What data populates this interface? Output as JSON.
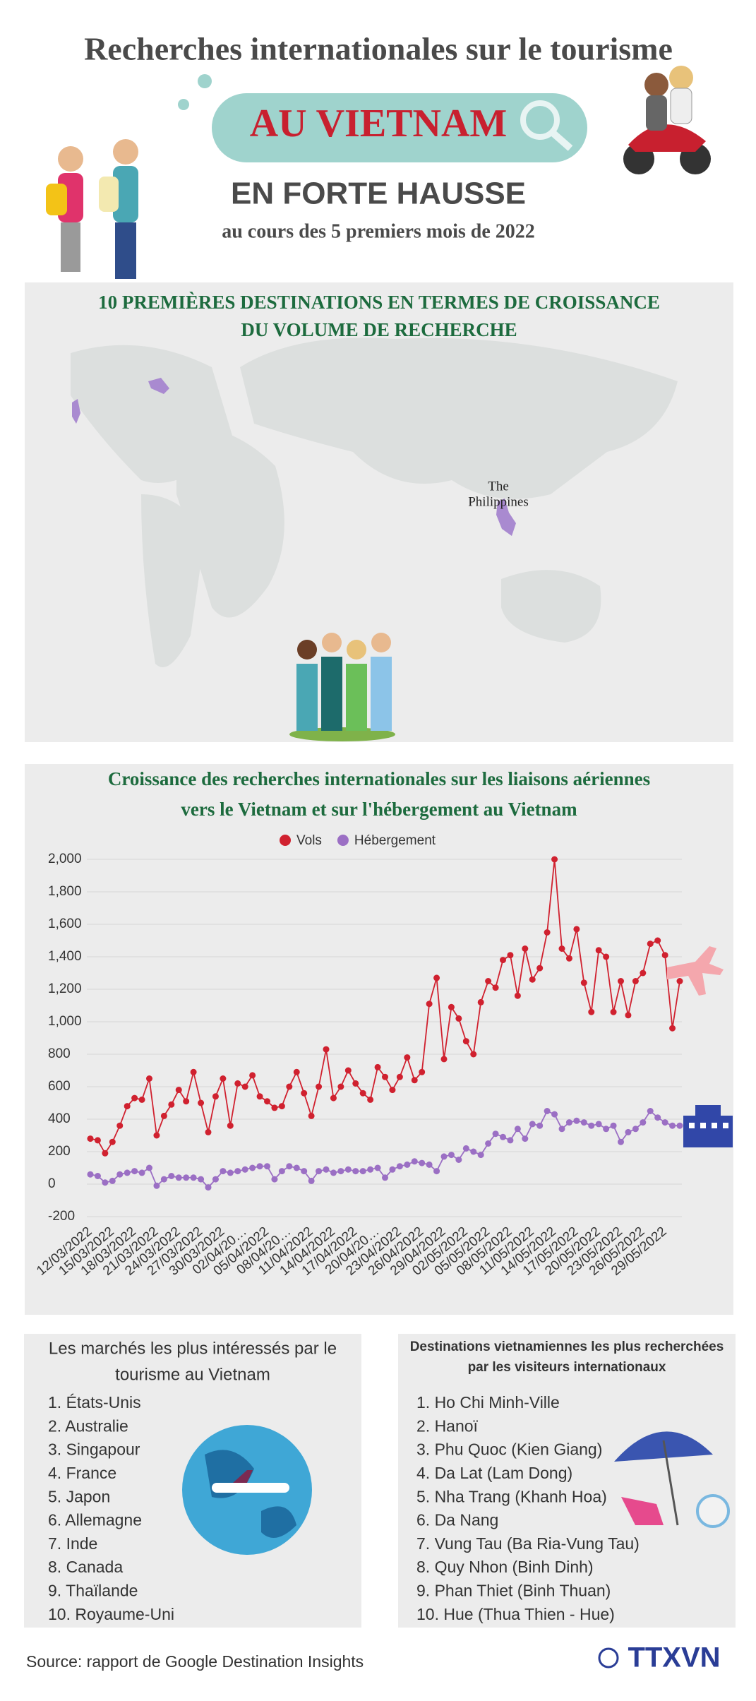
{
  "header": {
    "title": "Recherches internationales sur le tourisme",
    "highlight": "AU VIETNAM",
    "headline": "EN FORTE HAUSSE",
    "subtitle": "au cours des 5 premiers mois de 2022"
  },
  "map": {
    "title_lines": [
      "10 PREMIÈRES DESTINATIONS EN TERMES DE CROISSANCE",
      "DU VOLUME DE RECHERCHE"
    ],
    "label_lines": [
      "The",
      "Philippines"
    ]
  },
  "chart_data": {
    "type": "line",
    "title_lines": [
      "Croissance des recherches internationales sur les liaisons aériennes",
      "vers le Vietnam et sur l'hébergement au Vietnam"
    ],
    "categories": [
      "12/03/2022",
      null,
      null,
      "15/03/2022",
      null,
      null,
      "18/03/2022",
      null,
      null,
      "21/03/2022",
      null,
      null,
      "24/03/2022",
      null,
      null,
      "27/03/2022",
      null,
      null,
      "30/03/2022",
      null,
      null,
      "02/04/20…",
      null,
      null,
      "05/04/2022",
      null,
      null,
      "08/04/20…",
      null,
      null,
      "11/04/2022",
      null,
      null,
      "14/04/2022",
      null,
      null,
      "17/04/2022",
      null,
      null,
      "20/04/20…",
      null,
      null,
      "23/04/2022",
      null,
      null,
      "26/04/2022",
      null,
      null,
      "29/04/2022",
      null,
      null,
      "02/05/2022",
      null,
      null,
      "05/05/2022",
      null,
      null,
      "08/05/2022",
      null,
      null,
      "11/05/2022",
      null,
      null,
      "14/05/2022",
      null,
      null,
      "17/05/2022",
      null,
      null,
      "20/05/2022",
      null,
      null,
      "23/05/2022",
      null,
      null,
      "26/05/2022",
      null,
      null,
      "29/05/2022",
      null,
      null
    ],
    "series": [
      {
        "name": "Vols",
        "color": "#d0212f",
        "values": [
          280,
          270,
          190,
          260,
          360,
          480,
          530,
          520,
          650,
          300,
          420,
          490,
          580,
          510,
          690,
          500,
          320,
          540,
          650,
          360,
          620,
          600,
          670,
          540,
          510,
          470,
          480,
          600,
          690,
          560,
          420,
          600,
          830,
          530,
          600,
          700,
          620,
          560,
          520,
          720,
          660,
          580,
          660,
          780,
          640,
          690,
          1110,
          1270,
          770,
          1090,
          1020,
          880,
          800,
          1120,
          1250,
          1210,
          1380,
          1410,
          1160,
          1450,
          1260,
          1330,
          1550,
          2000,
          1450,
          1390,
          1570,
          1240,
          1060,
          1440,
          1400,
          1060,
          1250,
          1040,
          1250,
          1300,
          1480,
          1500,
          1410,
          960,
          1250
        ]
      },
      {
        "name": "Hébergement",
        "color": "#9b6fc4",
        "values": [
          60,
          50,
          10,
          20,
          60,
          70,
          80,
          70,
          100,
          -10,
          30,
          50,
          40,
          40,
          40,
          30,
          -20,
          30,
          80,
          70,
          80,
          90,
          100,
          110,
          110,
          30,
          80,
          110,
          100,
          80,
          20,
          80,
          90,
          70,
          80,
          90,
          80,
          80,
          90,
          100,
          40,
          90,
          110,
          120,
          140,
          130,
          120,
          80,
          170,
          180,
          150,
          220,
          200,
          180,
          250,
          310,
          290,
          270,
          340,
          280,
          370,
          360,
          450,
          430,
          340,
          380,
          390,
          380,
          360,
          370,
          340,
          360,
          260,
          320,
          340,
          380,
          450,
          410,
          380,
          360,
          360
        ]
      }
    ],
    "ylim": [
      -200,
      2000
    ],
    "yticks": [
      -200,
      0,
      200,
      400,
      600,
      800,
      {
        "value": 1000,
        "label": "1,000"
      },
      {
        "value": 1200,
        "label": "1,200"
      },
      {
        "value": 1400,
        "label": "1,400"
      },
      {
        "value": 1600,
        "label": "1,600"
      },
      {
        "value": 1800,
        "label": "1,800"
      },
      {
        "value": 2000,
        "label": "2,000"
      }
    ],
    "grid": true,
    "legend": "top"
  },
  "markets": {
    "title_lines": [
      "Les marchés les plus intéressés par le",
      "tourisme au Vietnam"
    ],
    "items": [
      "1. États-Unis",
      "2. Australie",
      "3. Singapour",
      "4. France",
      "5. Japon",
      "6. Allemagne",
      "7. Inde",
      "8. Canada",
      "9. Thaïlande",
      "10. Royaume-Uni"
    ]
  },
  "destinations": {
    "title_lines": [
      "Destinations vietnamiennes les plus recherchées",
      "par les visiteurs internationaux"
    ],
    "items": [
      "1. Ho Chi Minh-Ville",
      "2. Hanoï",
      "3. Phu Quoc (Kien Giang)",
      "4. Da Lat (Lam Dong)",
      "5. Nha Trang (Khanh Hoa)",
      "6. Da Nang",
      "7. Vung Tau (Ba Ria-Vung Tau)",
      "8. Quy Nhon (Binh Dinh)",
      "9. Phan Thiet (Binh Thuan)",
      "10. Hue (Thua Thien - Hue)"
    ]
  },
  "footer": {
    "source": "Source: rapport de Google Destination Insights",
    "logo": "TTXVN"
  }
}
